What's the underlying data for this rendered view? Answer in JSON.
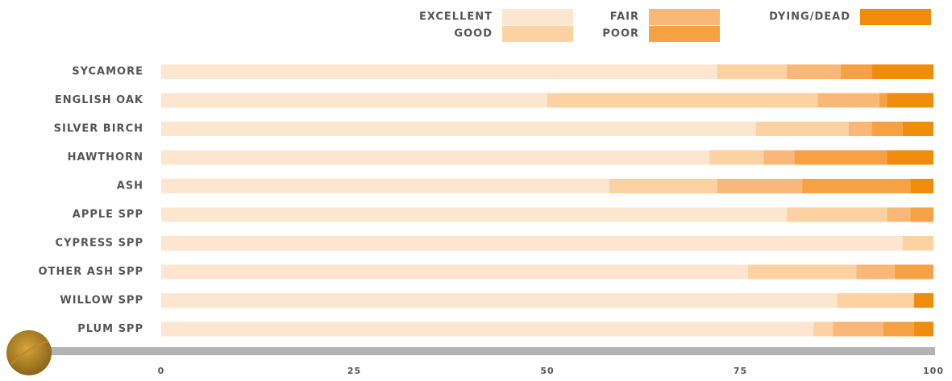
{
  "chart_data": {
    "type": "stacked-bar-horizontal",
    "categories": [
      "SYCAMORE",
      "ENGLISH OAK",
      "SILVER BIRCH",
      "HAWTHORN",
      "ASH",
      "APPLE SPP",
      "CYPRESS SPP",
      "OTHER ASH SPP",
      "WILLOW SPP",
      "PLUM SPP"
    ],
    "series": [
      {
        "name": "EXCELLENT",
        "color": "#fde6cf",
        "values": [
          72,
          50,
          77,
          71,
          58,
          81,
          96,
          76,
          87.5,
          84.5
        ]
      },
      {
        "name": "GOOD",
        "color": "#fcd2a2",
        "values": [
          9,
          35,
          12,
          7,
          14,
          13,
          4,
          14,
          10,
          2.5
        ]
      },
      {
        "name": "FAIR",
        "color": "#f9b877",
        "values": [
          7,
          8,
          3,
          4,
          11,
          3,
          0,
          5,
          0,
          6.5
        ]
      },
      {
        "name": "POOR",
        "color": "#f6a244",
        "values": [
          4,
          1,
          4,
          12,
          14,
          3,
          0,
          5,
          0,
          4
        ]
      },
      {
        "name": "DYING/DEAD",
        "color": "#f08c0c",
        "values": [
          8,
          6,
          4,
          6,
          3,
          0,
          0,
          0,
          2.5,
          2.5
        ]
      }
    ],
    "xlim": [
      0,
      100
    ],
    "xticks": [
      0,
      25,
      50,
      75,
      100
    ],
    "grid": false
  }
}
